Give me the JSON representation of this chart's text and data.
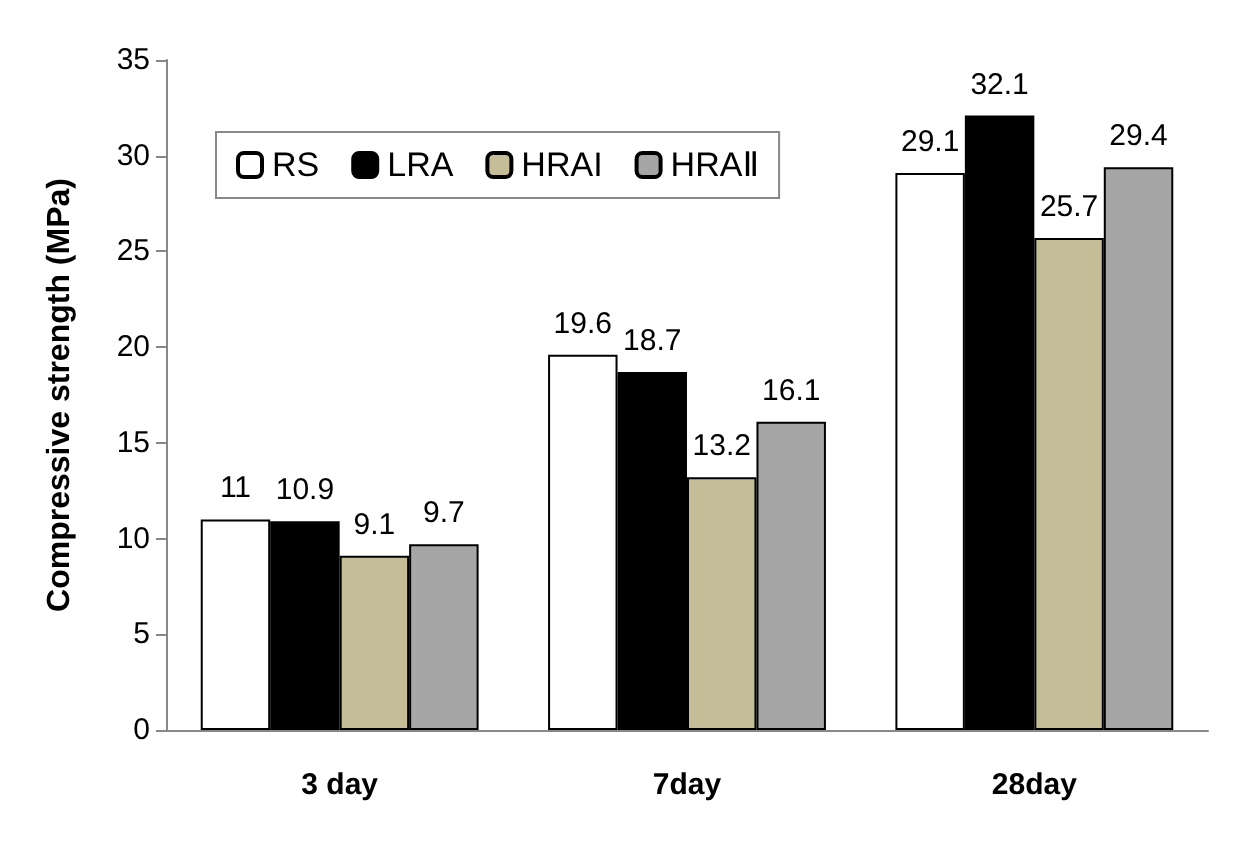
{
  "chart_data": {
    "type": "bar",
    "ylabel": "Compressive strength (MPa)",
    "categories": [
      "3 day",
      "7day",
      "28day"
    ],
    "series": [
      {
        "name": "RS",
        "color": "#ffffff",
        "values": [
          11,
          19.6,
          29.1
        ]
      },
      {
        "name": "LRA",
        "color": "#000000",
        "values": [
          10.9,
          18.7,
          32.1
        ]
      },
      {
        "name": "HRAI",
        "color": "#c4bd97",
        "values": [
          9.1,
          13.2,
          25.7
        ]
      },
      {
        "name": "HRAⅡ",
        "color": "#a6a6a6",
        "values": [
          9.7,
          16.1,
          29.4
        ]
      }
    ],
    "ylim": [
      0,
      35
    ],
    "yticks": [
      0,
      5,
      10,
      15,
      20,
      25,
      30,
      35
    ],
    "grid": false,
    "legend": "top left",
    "data_labels": true
  }
}
